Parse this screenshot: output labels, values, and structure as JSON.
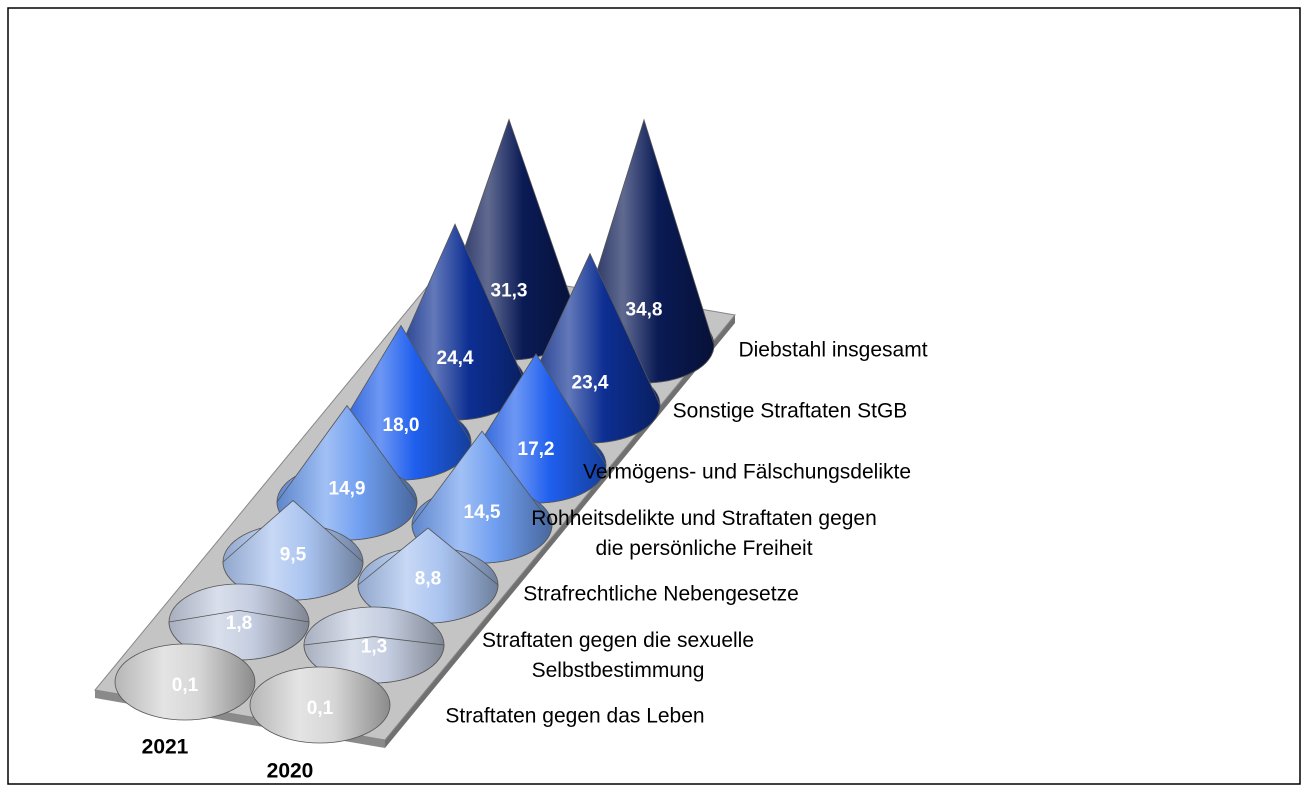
{
  "chart_data": {
    "type": "cone",
    "categories": [
      "Straftaten gegen das Leben",
      "Straftaten gegen die sexuelle\nSelbstbestimmung",
      "Strafrechtliche Nebengesetze",
      "Rohheitsdelikte und Straftaten gegen\ndie persönliche Freiheit",
      "Vermögens- und Fälschungsdelikte",
      "Sonstige Straftaten StGB",
      "Diebstahl insgesamt"
    ],
    "colors": [
      "#d6d6d6",
      "#c4cde0",
      "#a9c3f0",
      "#6f9ef0",
      "#1f5fee",
      "#0d2f93",
      "#0a1a55"
    ],
    "series": [
      {
        "name": "2021",
        "values": [
          0.1,
          1.8,
          9.5,
          14.9,
          18.0,
          24.4,
          31.3
        ],
        "value_labels": [
          "0,1",
          "1,8",
          "9,5",
          "14,9",
          "18,0",
          "24,4",
          "31,3"
        ]
      },
      {
        "name": "2020",
        "values": [
          0.1,
          1.3,
          8.8,
          14.5,
          17.2,
          23.4,
          34.8
        ],
        "value_labels": [
          "0,1",
          "1,3",
          "8,8",
          "14,5",
          "17,2",
          "23,4",
          "34,8"
        ]
      }
    ]
  }
}
